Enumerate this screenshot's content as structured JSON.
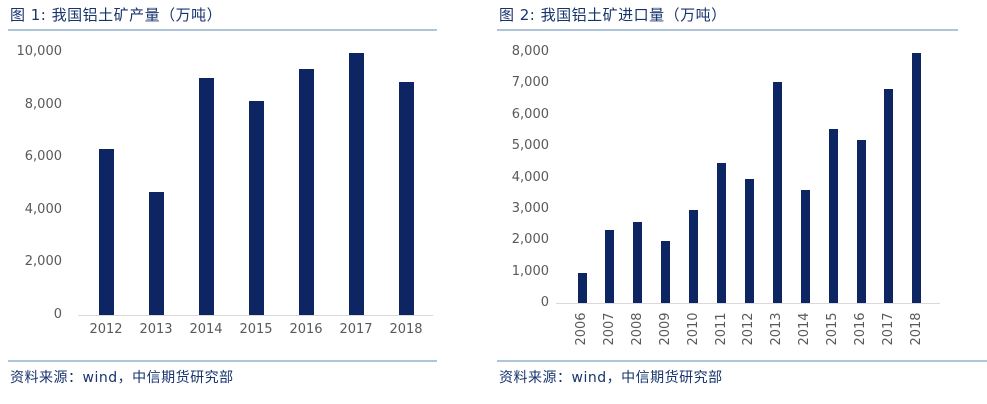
{
  "page": {
    "background": "#ffffff"
  },
  "colors": {
    "bar_navy": "#0d2563",
    "text_navy": "#17346d",
    "divider_blue": "#aec4d8",
    "axis_line_gray": "#d9d9d9",
    "tick_label_gray": "#595959"
  },
  "panels": [
    {
      "title": "图 1: 我国铝土矿产量（万吨）",
      "source": "资料来源：wind，中信期货研究部"
    },
    {
      "title": "图 2: 我国铝土矿进口量（万吨）",
      "source": "资料来源：wind，中信期货研究部"
    }
  ],
  "chart_data": [
    {
      "type": "bar",
      "title": "图 1: 我国铝土矿产量（万吨）",
      "categories": [
        "2012",
        "2013",
        "2014",
        "2015",
        "2016",
        "2017",
        "2018"
      ],
      "values": [
        6300,
        4680,
        9000,
        8150,
        9350,
        9950,
        8870
      ],
      "xlabel": "",
      "ylabel": "",
      "ylim": [
        0,
        10000
      ],
      "ytick_step": 2000,
      "ytick_labels": [
        "0",
        "2,000",
        "4,000",
        "6,000",
        "8,000",
        "10,000"
      ],
      "bar_color": "#0d2563",
      "grid": false,
      "legend": "none",
      "x_label_rotation": 0
    },
    {
      "type": "bar",
      "title": "图 2: 我国铝土矿进口量（万吨）",
      "categories": [
        "2006",
        "2007",
        "2008",
        "2009",
        "2010",
        "2011",
        "2012",
        "2013",
        "2014",
        "2015",
        "2016",
        "2017",
        "2018"
      ],
      "values": [
        950,
        2330,
        2580,
        1980,
        2960,
        4450,
        3940,
        7050,
        3600,
        5560,
        5190,
        6810,
        7970
      ],
      "xlabel": "",
      "ylabel": "",
      "ylim": [
        0,
        8000
      ],
      "ytick_step": 1000,
      "ytick_labels": [
        "0",
        "1,000",
        "2,000",
        "3,000",
        "4,000",
        "5,000",
        "6,000",
        "7,000",
        "8,000"
      ],
      "bar_color": "#0d2563",
      "grid": false,
      "legend": "none",
      "x_label_rotation": -90
    }
  ]
}
